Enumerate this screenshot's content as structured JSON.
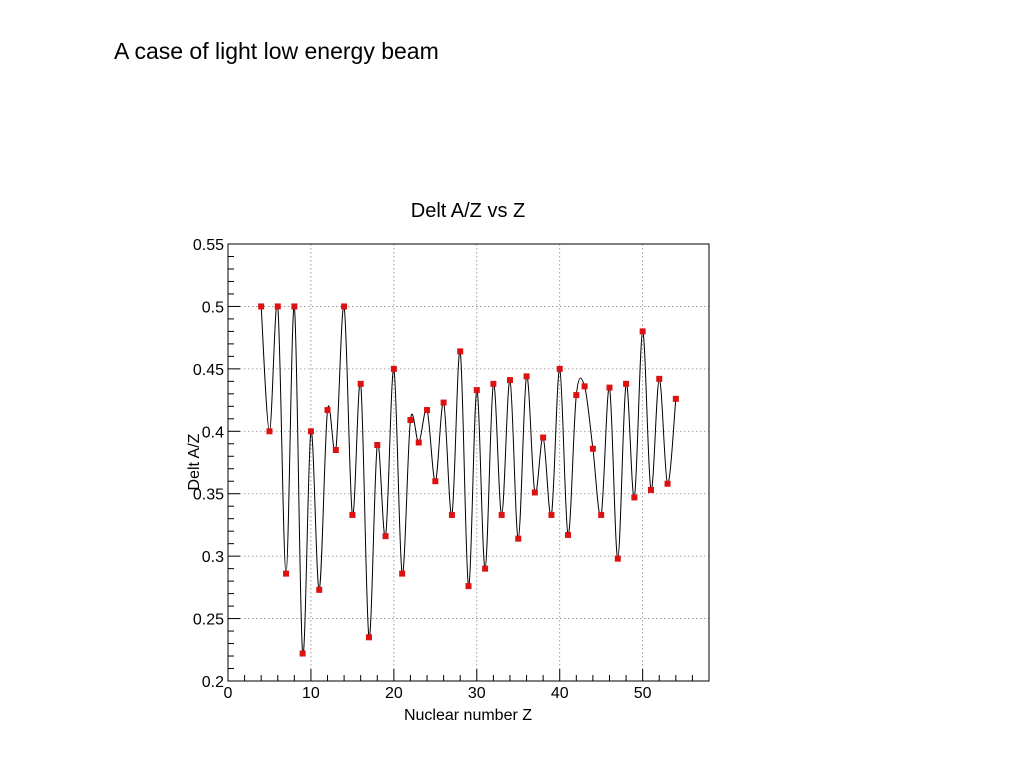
{
  "slide": {
    "title": "A case of light low energy beam"
  },
  "colors": {
    "marker": "#dd1111",
    "curve": "#000000",
    "grid": "#888888",
    "axis": "#000000"
  },
  "chart_data": {
    "type": "line",
    "title": "Delt A/Z  vs  Z",
    "xlabel": "Nuclear number Z",
    "ylabel": "Delt A/Z",
    "xlim": [
      0,
      58
    ],
    "ylim": [
      0.2,
      0.55
    ],
    "grid": true,
    "legend": "none",
    "x_ticks": [
      "0",
      "10",
      "20",
      "30",
      "40",
      "50"
    ],
    "y_ticks": [
      "0.2",
      "0.25",
      "0.3",
      "0.35",
      "0.4",
      "0.45",
      "0.5",
      "0.55"
    ],
    "series": [
      {
        "x": [
          4,
          5,
          6,
          7,
          8,
          9,
          10,
          11,
          12,
          13,
          14,
          15,
          16,
          17,
          18,
          19,
          20,
          21,
          22,
          23,
          24,
          25,
          26,
          27,
          28,
          29,
          30,
          31,
          32,
          33,
          34,
          35,
          36,
          37,
          38,
          39,
          40,
          41,
          42,
          43,
          44,
          45,
          46,
          47,
          48,
          49,
          50,
          51,
          52,
          53,
          54
        ],
        "y": [
          0.5,
          0.4,
          0.5,
          0.286,
          0.5,
          0.222,
          0.4,
          0.273,
          0.417,
          0.385,
          0.5,
          0.333,
          0.438,
          0.235,
          0.389,
          0.316,
          0.45,
          0.286,
          0.409,
          0.391,
          0.417,
          0.36,
          0.423,
          0.333,
          0.464,
          0.276,
          0.433,
          0.29,
          0.438,
          0.333,
          0.441,
          0.314,
          0.444,
          0.351,
          0.395,
          0.333,
          0.45,
          0.317,
          0.429,
          0.436,
          0.386,
          0.333,
          0.435,
          0.298,
          0.438,
          0.347,
          0.48,
          0.353,
          0.442,
          0.358,
          0.426
        ]
      }
    ]
  }
}
